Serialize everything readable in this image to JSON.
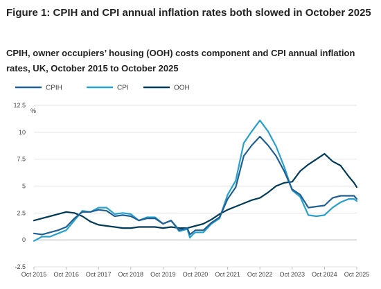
{
  "title": "Figure 1: CPIH and CPI annual inflation rates both slowed in October 2025",
  "subtitle": "CPIH, owner occupiers’ housing (OOH) costs component and CPI annual inflation rates, UK, October 2015 to October 2025",
  "chart_data": {
    "type": "line",
    "title": "Figure 1: CPIH and CPI annual inflation rates both slowed in October 2025",
    "subtitle": "CPIH, owner occupiers’ housing (OOH) costs component and CPI annual inflation rates, UK, October 2015 to October 2025",
    "ylabel": "%",
    "xlabel": "",
    "ylim": [
      -2.5,
      12.5
    ],
    "yticks": [
      -2.5,
      0,
      2.5,
      5,
      7.5,
      10,
      12.5
    ],
    "ytick_labels": [
      "-2.5",
      "0",
      "2.5",
      "5",
      "7.5",
      "10",
      "12.5"
    ],
    "xticks": [
      "Oct 2015",
      "Oct 2016",
      "Oct 2017",
      "Oct 2018",
      "Oct 2019",
      "Oct 2020",
      "Oct 2021",
      "Oct 2022",
      "Oct 2023",
      "Oct 2024",
      "Oct 2025"
    ],
    "grid": true,
    "legend_position": "top-left",
    "series": [
      {
        "name": "CPIH",
        "color": "#206095",
        "points": [
          [
            "Oct 2015",
            0.6
          ],
          [
            "Jan 2016",
            0.5
          ],
          [
            "Apr 2016",
            0.7
          ],
          [
            "Jul 2016",
            0.9
          ],
          [
            "Oct 2016",
            1.2
          ],
          [
            "Jan 2017",
            2.0
          ],
          [
            "Apr 2017",
            2.6
          ],
          [
            "Jul 2017",
            2.6
          ],
          [
            "Oct 2017",
            2.8
          ],
          [
            "Jan 2018",
            2.7
          ],
          [
            "Apr 2018",
            2.2
          ],
          [
            "Jul 2018",
            2.3
          ],
          [
            "Oct 2018",
            2.2
          ],
          [
            "Jan 2019",
            1.8
          ],
          [
            "Apr 2019",
            2.0
          ],
          [
            "Jul 2019",
            2.0
          ],
          [
            "Oct 2019",
            1.5
          ],
          [
            "Jan 2020",
            1.8
          ],
          [
            "Apr 2020",
            0.9
          ],
          [
            "Jul 2020",
            1.1
          ],
          [
            "Aug 2020",
            0.5
          ],
          [
            "Sep 2020",
            0.7
          ],
          [
            "Oct 2020",
            0.9
          ],
          [
            "Jan 2021",
            0.9
          ],
          [
            "Apr 2021",
            1.6
          ],
          [
            "Jul 2021",
            2.1
          ],
          [
            "Oct 2021",
            3.8
          ],
          [
            "Jan 2022",
            4.9
          ],
          [
            "Apr 2022",
            7.8
          ],
          [
            "Jul 2022",
            8.8
          ],
          [
            "Oct 2022",
            9.6
          ],
          [
            "Jan 2023",
            8.8
          ],
          [
            "Apr 2023",
            7.8
          ],
          [
            "Jul 2023",
            6.4
          ],
          [
            "Oct 2023",
            4.7
          ],
          [
            "Jan 2024",
            4.2
          ],
          [
            "Apr 2024",
            3.0
          ],
          [
            "Jul 2024",
            3.1
          ],
          [
            "Oct 2024",
            3.2
          ],
          [
            "Jan 2025",
            3.9
          ],
          [
            "Apr 2025",
            4.1
          ],
          [
            "Jul 2025",
            4.1
          ],
          [
            "Sep 2025",
            4.1
          ],
          [
            "Oct 2025",
            3.8
          ]
        ]
      },
      {
        "name": "CPI",
        "color": "#27a0cc",
        "points": [
          [
            "Oct 2015",
            -0.1
          ],
          [
            "Jan 2016",
            0.3
          ],
          [
            "Apr 2016",
            0.3
          ],
          [
            "Jul 2016",
            0.6
          ],
          [
            "Oct 2016",
            0.9
          ],
          [
            "Jan 2017",
            1.8
          ],
          [
            "Apr 2017",
            2.7
          ],
          [
            "Jul 2017",
            2.6
          ],
          [
            "Oct 2017",
            3.0
          ],
          [
            "Jan 2018",
            3.0
          ],
          [
            "Apr 2018",
            2.4
          ],
          [
            "Jul 2018",
            2.5
          ],
          [
            "Oct 2018",
            2.4
          ],
          [
            "Jan 2019",
            1.8
          ],
          [
            "Apr 2019",
            2.1
          ],
          [
            "Jul 2019",
            2.1
          ],
          [
            "Oct 2019",
            1.5
          ],
          [
            "Jan 2020",
            1.8
          ],
          [
            "Apr 2020",
            0.8
          ],
          [
            "Jul 2020",
            1.0
          ],
          [
            "Aug 2020",
            0.2
          ],
          [
            "Sep 2020",
            0.5
          ],
          [
            "Oct 2020",
            0.7
          ],
          [
            "Jan 2021",
            0.7
          ],
          [
            "Apr 2021",
            1.5
          ],
          [
            "Jul 2021",
            2.0
          ],
          [
            "Oct 2021",
            4.2
          ],
          [
            "Jan 2022",
            5.5
          ],
          [
            "Apr 2022",
            9.0
          ],
          [
            "Jul 2022",
            10.1
          ],
          [
            "Oct 2022",
            11.1
          ],
          [
            "Jan 2023",
            10.1
          ],
          [
            "Apr 2023",
            8.7
          ],
          [
            "Jul 2023",
            6.8
          ],
          [
            "Oct 2023",
            4.6
          ],
          [
            "Jan 2024",
            4.0
          ],
          [
            "Apr 2024",
            2.3
          ],
          [
            "Jul 2024",
            2.2
          ],
          [
            "Oct 2024",
            2.3
          ],
          [
            "Jan 2025",
            3.0
          ],
          [
            "Apr 2025",
            3.5
          ],
          [
            "Jul 2025",
            3.8
          ],
          [
            "Sep 2025",
            3.8
          ],
          [
            "Oct 2025",
            3.6
          ]
        ]
      },
      {
        "name": "OOH",
        "color": "#003c57",
        "points": [
          [
            "Oct 2015",
            1.8
          ],
          [
            "Jan 2016",
            2.0
          ],
          [
            "Apr 2016",
            2.2
          ],
          [
            "Jul 2016",
            2.4
          ],
          [
            "Oct 2016",
            2.6
          ],
          [
            "Jan 2017",
            2.5
          ],
          [
            "Apr 2017",
            2.2
          ],
          [
            "Jul 2017",
            1.7
          ],
          [
            "Oct 2017",
            1.4
          ],
          [
            "Jan 2018",
            1.3
          ],
          [
            "Apr 2018",
            1.2
          ],
          [
            "Jul 2018",
            1.1
          ],
          [
            "Oct 2018",
            1.1
          ],
          [
            "Jan 2019",
            1.2
          ],
          [
            "Apr 2019",
            1.2
          ],
          [
            "Jul 2019",
            1.2
          ],
          [
            "Oct 2019",
            1.1
          ],
          [
            "Jan 2020",
            1.2
          ],
          [
            "Apr 2020",
            1.1
          ],
          [
            "Jul 2020",
            1.1
          ],
          [
            "Oct 2020",
            1.3
          ],
          [
            "Jan 2021",
            1.5
          ],
          [
            "Apr 2021",
            1.9
          ],
          [
            "Jul 2021",
            2.4
          ],
          [
            "Oct 2021",
            2.8
          ],
          [
            "Jan 2022",
            3.1
          ],
          [
            "Apr 2022",
            3.4
          ],
          [
            "Jul 2022",
            3.7
          ],
          [
            "Oct 2022",
            3.9
          ],
          [
            "Jan 2023",
            4.4
          ],
          [
            "Apr 2023",
            5.0
          ],
          [
            "Jul 2023",
            5.3
          ],
          [
            "Oct 2023",
            5.4
          ],
          [
            "Jan 2024",
            6.4
          ],
          [
            "Apr 2024",
            7.0
          ],
          [
            "Jul 2024",
            7.5
          ],
          [
            "Oct 2024",
            8.0
          ],
          [
            "Jan 2025",
            7.3
          ],
          [
            "Apr 2025",
            6.9
          ],
          [
            "Jul 2025",
            5.9
          ],
          [
            "Sep 2025",
            5.3
          ],
          [
            "Oct 2025",
            4.9
          ]
        ]
      }
    ]
  }
}
